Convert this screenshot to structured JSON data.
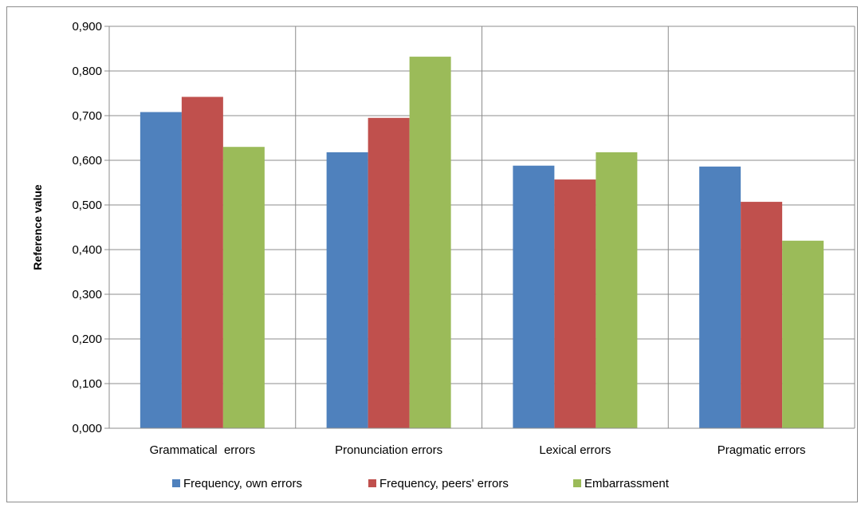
{
  "chart_data": {
    "type": "bar",
    "title": "",
    "xlabel": "",
    "ylabel": "Reference value",
    "ylim": [
      0,
      0.9
    ],
    "ytick_step": 0.1,
    "yticks": [
      "0,000",
      "0,100",
      "0,200",
      "0,300",
      "0,400",
      "0,500",
      "0,600",
      "0,700",
      "0,800",
      "0,900"
    ],
    "categories": [
      "Grammatical  errors",
      "Pronunciation errors",
      "Lexical errors",
      "Pragmatic errors"
    ],
    "series": [
      {
        "name": "Frequency, own errors",
        "color": "#4f81bd",
        "values": [
          0.708,
          0.618,
          0.588,
          0.586
        ]
      },
      {
        "name": "Frequency, peers' errors",
        "color": "#c0504d",
        "values": [
          0.742,
          0.695,
          0.557,
          0.507
        ]
      },
      {
        "name": "Embarrassment",
        "color": "#9bbb59",
        "values": [
          0.63,
          0.832,
          0.618,
          0.42
        ]
      }
    ],
    "grid": true,
    "legend_position": "bottom"
  }
}
